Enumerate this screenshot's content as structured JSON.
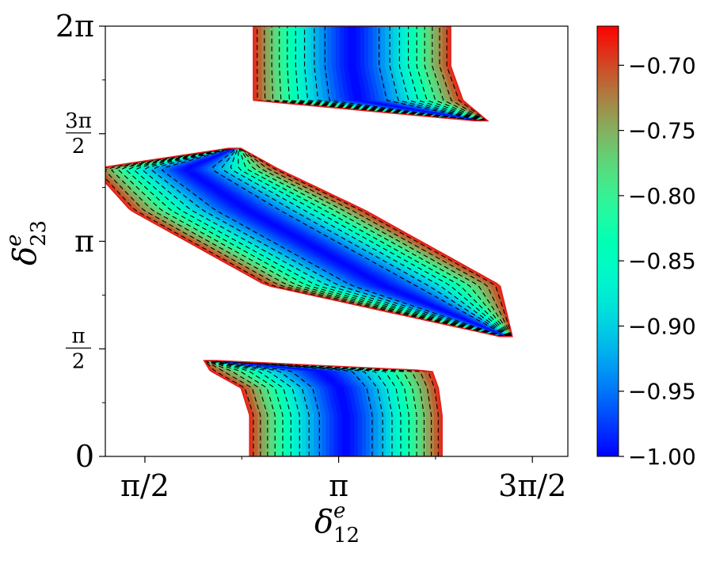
{
  "chart_data": {
    "type": "heatmap",
    "title": "",
    "xlabel": "δ",
    "xlabel_sup": "e",
    "xlabel_sub": "12",
    "ylabel": "δ",
    "ylabel_sup": "e",
    "ylabel_sub": "23",
    "xlim": [
      1.25,
      5.0
    ],
    "ylim": [
      0,
      6.2832
    ],
    "x_ticks": [
      {
        "value": 1.5708,
        "label": "π/2"
      },
      {
        "value": 3.1416,
        "label": "π"
      },
      {
        "value": 4.7124,
        "label": "3π/2"
      }
    ],
    "x_minor_ticks": [
      2.3562,
      3.927
    ],
    "y_ticks": [
      {
        "value": 0,
        "label": "0",
        "frac": false
      },
      {
        "value": 1.5708,
        "label": "",
        "frac": true,
        "num": "π",
        "den": "2"
      },
      {
        "value": 3.1416,
        "label": "π",
        "frac": false
      },
      {
        "value": 4.7124,
        "label": "",
        "frac": true,
        "num": "3π",
        "den": "2"
      },
      {
        "value": 6.2832,
        "label": "2π",
        "frac": false
      }
    ],
    "y_minor_ticks": [
      0.785,
      2.356,
      3.927,
      5.498
    ],
    "colormap": "rainbow",
    "colorbar": {
      "min": -1.0,
      "max": -0.67,
      "ticks": [
        -1.0,
        -0.95,
        -0.9,
        -0.85,
        -0.8,
        -0.75,
        -0.7
      ],
      "tick_labels": [
        "−1.00",
        "−0.95",
        "−0.90",
        "−0.85",
        "−0.80",
        "−0.75",
        "−0.70"
      ]
    },
    "contour_levels": [
      -0.95,
      -0.92,
      -0.89,
      -0.86,
      -0.83,
      -0.8,
      -0.77,
      -0.74,
      -0.71
    ],
    "regions": [
      {
        "name": "lower band",
        "y_range": [
          0,
          1.4
        ],
        "center_x": [
          3.2,
          3.2,
          3.15,
          3.0,
          2.1
        ],
        "center_y": [
          0,
          0.6,
          1.0,
          1.25,
          1.4
        ],
        "half_width": [
          0.78,
          0.78,
          0.8,
          0.9,
          0.05
        ]
      },
      {
        "name": "middle band",
        "y_range": [
          1.75,
          4.5
        ],
        "center_x": [
          4.5,
          3.5,
          2.4,
          1.9,
          2.3
        ],
        "center_y": [
          1.75,
          2.5,
          3.6,
          4.2,
          4.5
        ],
        "half_width": [
          0.05,
          0.95,
          0.95,
          0.75,
          0.05
        ]
      },
      {
        "name": "upper band",
        "y_range": [
          4.9,
          6.2832
        ],
        "center_x": [
          4.3,
          3.3,
          3.25,
          3.25
        ],
        "center_y": [
          4.9,
          5.2,
          5.7,
          6.2832
        ],
        "half_width": [
          0.05,
          0.85,
          0.8,
          0.8
        ]
      }
    ]
  }
}
